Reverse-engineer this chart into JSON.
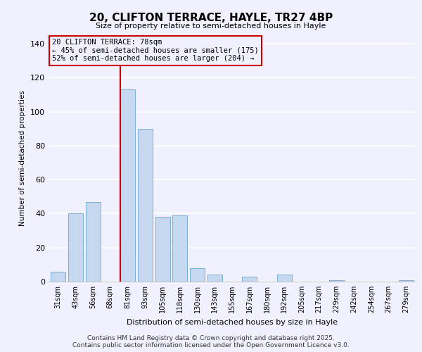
{
  "title": "20, CLIFTON TERRACE, HAYLE, TR27 4BP",
  "subtitle": "Size of property relative to semi-detached houses in Hayle",
  "xlabel": "Distribution of semi-detached houses by size in Hayle",
  "ylabel": "Number of semi-detached properties",
  "categories": [
    "31sqm",
    "43sqm",
    "56sqm",
    "68sqm",
    "81sqm",
    "93sqm",
    "105sqm",
    "118sqm",
    "130sqm",
    "143sqm",
    "155sqm",
    "167sqm",
    "180sqm",
    "192sqm",
    "205sqm",
    "217sqm",
    "229sqm",
    "242sqm",
    "254sqm",
    "267sqm",
    "279sqm"
  ],
  "values": [
    6,
    40,
    47,
    0,
    113,
    90,
    38,
    39,
    8,
    4,
    0,
    3,
    0,
    4,
    0,
    0,
    1,
    0,
    0,
    0,
    1
  ],
  "bar_color": "#c5d8f0",
  "bar_edge_color": "#7bafd4",
  "vline_color": "#cc0000",
  "vline_bar_index": 4,
  "annotation_title": "20 CLIFTON TERRACE: 78sqm",
  "annotation_line1": "← 45% of semi-detached houses are smaller (175)",
  "annotation_line2": "52% of semi-detached houses are larger (204) →",
  "annotation_box_color": "#cc0000",
  "ylim": [
    0,
    145
  ],
  "yticks": [
    0,
    20,
    40,
    60,
    80,
    100,
    120,
    140
  ],
  "footer1": "Contains HM Land Registry data © Crown copyright and database right 2025.",
  "footer2": "Contains public sector information licensed under the Open Government Licence v3.0.",
  "bg_color": "#f0f0ff"
}
